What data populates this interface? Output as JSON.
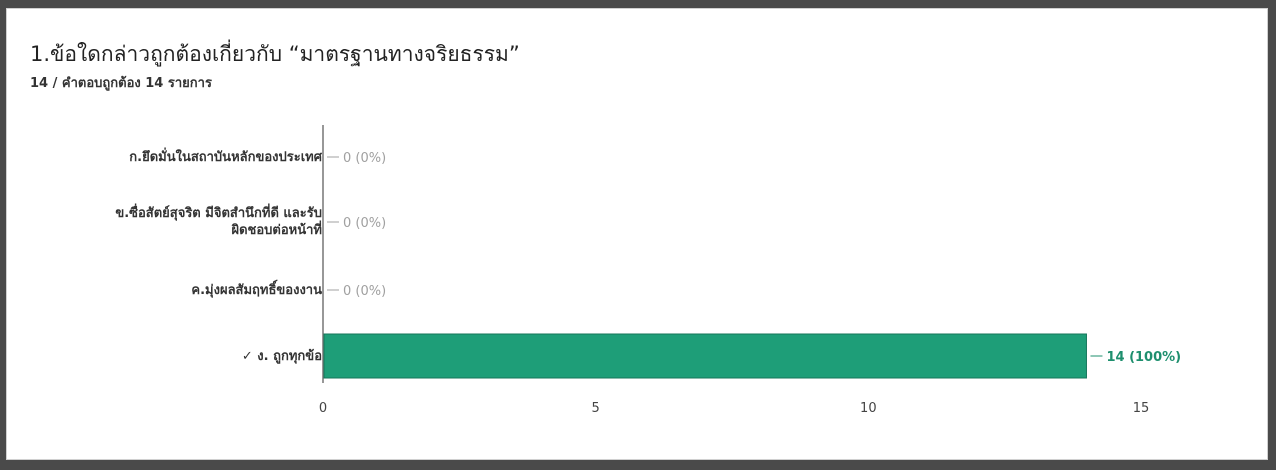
{
  "header": {
    "title": "1.ข้อใดกล่าวถูกต้องเกี่ยวกับ “มาตรฐานทางจริยธรรม”",
    "subtitle": "14 / คำตอบถูกต้อง 14 รายการ"
  },
  "chart_data": {
    "type": "bar",
    "orientation": "horizontal",
    "categories": [
      "ก.ยึดมั่นในสถาบันหลักของประเทศ",
      "ข.ซื่อสัตย์สุจริต มีจิตสำนึกที่ดี และรับผิดชอบต่อหน้าที่",
      "ค.มุ่งผลสัมฤทธิ์ของงาน",
      "✓ ง. ถูกทุกข้อ"
    ],
    "category_lines": [
      [
        "ก.ยึดมั่นในสถาบันหลักของประเทศ"
      ],
      [
        "ข.ซื่อสัตย์สุจริต มีจิตสำนึกที่ดี และรับ",
        "ผิดชอบต่อหน้าที่"
      ],
      [
        "ค.มุ่งผลสัมฤทธิ์ของงาน"
      ],
      [
        "✓ ง. ถูกทุกข้อ"
      ]
    ],
    "values": [
      0,
      0,
      0,
      14
    ],
    "value_labels": [
      "0 (0%)",
      "0 (0%)",
      "0 (0%)",
      "14 (100%)"
    ],
    "xlim": [
      0,
      15
    ],
    "xticks": [
      0,
      5,
      10,
      15
    ],
    "bar_color": "#1e9e78",
    "correct_label_color": "#1e8f6e",
    "zero_label_color": "#a0a0a0",
    "grid": false
  }
}
